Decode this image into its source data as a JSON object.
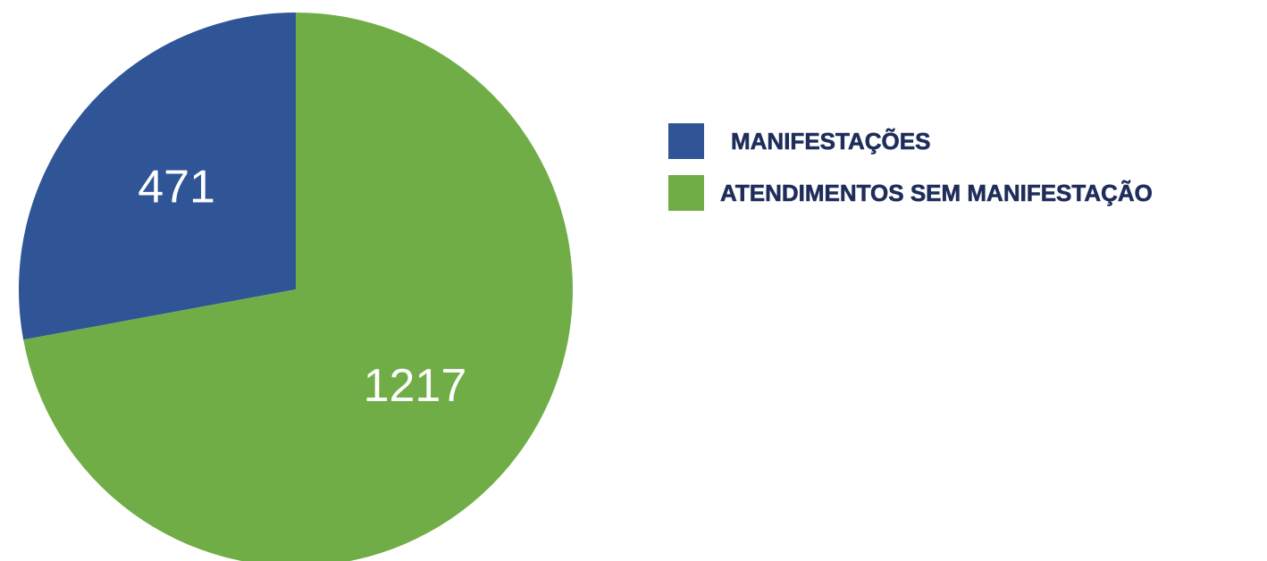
{
  "chart_data": {
    "type": "pie",
    "categories": [
      "MANIFESTAÇÕES",
      "ATENDIMENTOS SEM MANIFESTAÇÃO"
    ],
    "values": [
      471,
      1217
    ],
    "colors": [
      "#2f5597",
      "#70ad47"
    ],
    "legend": "right"
  }
}
